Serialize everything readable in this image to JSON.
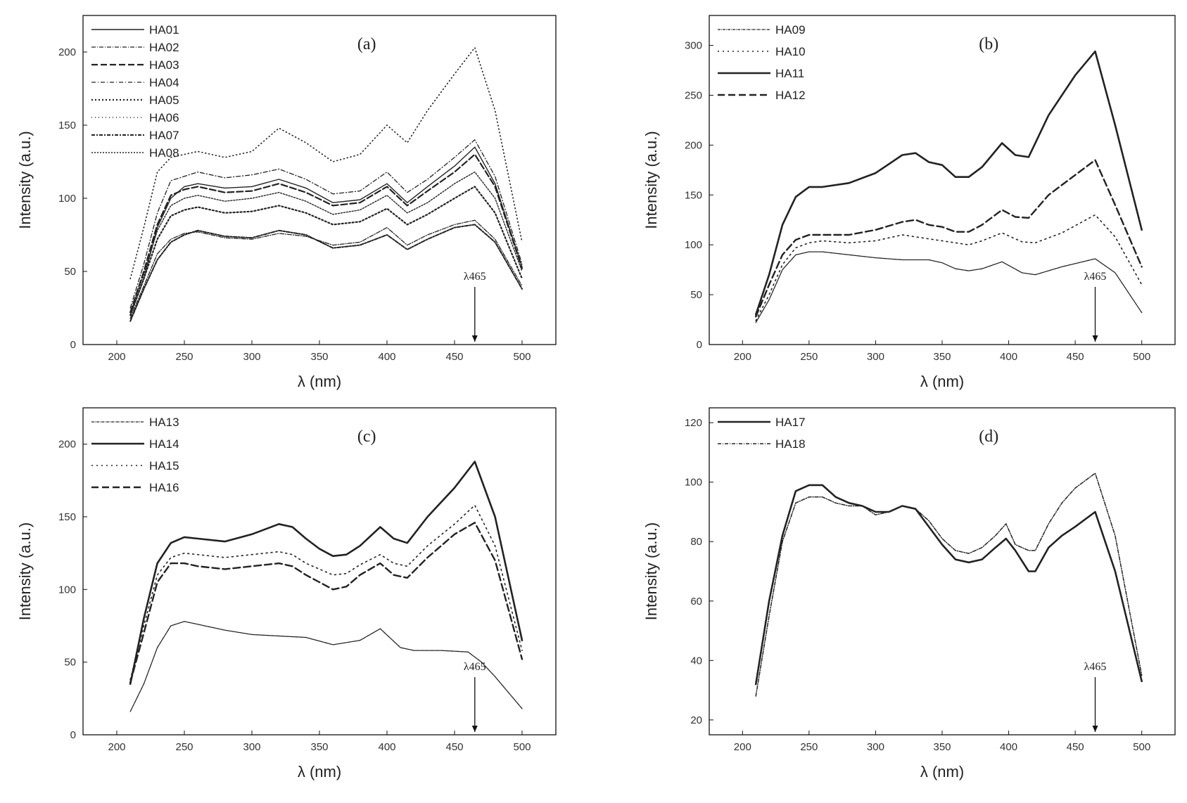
{
  "chart_data": [
    {
      "panel": "(a)",
      "type": "line",
      "xlabel": "λ (nm)",
      "ylabel": "Intensity (a.u.)",
      "xlim": [
        175,
        525
      ],
      "ylim": [
        0,
        225
      ],
      "xticks": [
        200,
        250,
        300,
        350,
        400,
        450,
        500
      ],
      "yticks": [
        0,
        50,
        100,
        150,
        200
      ],
      "annotation": {
        "text": "λ465",
        "x": 465
      },
      "legend_position": "top-left",
      "series": [
        {
          "name": "HA01",
          "dash": "",
          "width": 1.4,
          "x": [
            210,
            220,
            230,
            240,
            250,
            260,
            280,
            300,
            320,
            340,
            360,
            380,
            400,
            415,
            430,
            450,
            465,
            480,
            500
          ],
          "y": [
            20,
            45,
            80,
            100,
            108,
            110,
            107,
            108,
            113,
            107,
            97,
            99,
            110,
            97,
            108,
            122,
            135,
            110,
            53
          ]
        },
        {
          "name": "HA02",
          "dash": "6,2,1,2",
          "width": 1.3,
          "x": [
            210,
            220,
            230,
            240,
            250,
            260,
            280,
            300,
            320,
            340,
            360,
            380,
            400,
            415,
            430,
            450,
            465,
            480,
            500
          ],
          "y": [
            18,
            40,
            62,
            72,
            76,
            77,
            73,
            72,
            76,
            74,
            68,
            70,
            80,
            68,
            75,
            82,
            85,
            72,
            40
          ]
        },
        {
          "name": "HA03",
          "dash": "9,4",
          "width": 2.2,
          "x": [
            210,
            220,
            230,
            240,
            250,
            260,
            280,
            300,
            320,
            340,
            360,
            380,
            400,
            415,
            430,
            450,
            465,
            480,
            500
          ],
          "y": [
            22,
            50,
            82,
            102,
            106,
            108,
            104,
            105,
            110,
            104,
            95,
            97,
            108,
            95,
            105,
            118,
            130,
            108,
            52
          ]
        },
        {
          "name": "HA04",
          "dash": "6,3,1,3",
          "width": 1.3,
          "x": [
            210,
            220,
            230,
            240,
            250,
            260,
            280,
            300,
            320,
            340,
            360,
            380,
            400,
            415,
            430,
            450,
            465,
            480,
            500
          ],
          "y": [
            25,
            55,
            90,
            112,
            115,
            118,
            114,
            116,
            120,
            113,
            103,
            105,
            118,
            104,
            113,
            128,
            140,
            115,
            55
          ]
        },
        {
          "name": "HA05",
          "dash": "2,3",
          "width": 2.2,
          "x": [
            210,
            220,
            230,
            240,
            250,
            260,
            280,
            300,
            320,
            340,
            360,
            380,
            400,
            415,
            430,
            450,
            465,
            480,
            500
          ],
          "y": [
            20,
            45,
            72,
            88,
            92,
            94,
            90,
            91,
            95,
            90,
            82,
            84,
            93,
            82,
            89,
            100,
            108,
            90,
            45
          ]
        },
        {
          "name": "HA06",
          "dash": "1,4",
          "width": 1.6,
          "x": [
            210,
            220,
            230,
            240,
            250,
            260,
            280,
            300,
            320,
            340,
            360,
            380,
            400,
            415,
            430,
            450,
            465,
            480,
            500
          ],
          "y": [
            45,
            80,
            118,
            128,
            130,
            132,
            128,
            132,
            148,
            138,
            125,
            130,
            150,
            138,
            160,
            185,
            203,
            160,
            70
          ]
        },
        {
          "name": "HA07",
          "dash": "5,2,2,2",
          "width": 2.0,
          "x": [
            210,
            220,
            230,
            240,
            250,
            260,
            280,
            300,
            320,
            340,
            360,
            380,
            400,
            415,
            430,
            450,
            465,
            480,
            500
          ],
          "y": [
            16,
            38,
            58,
            70,
            75,
            78,
            74,
            73,
            78,
            75,
            66,
            68,
            75,
            65,
            72,
            80,
            82,
            70,
            38
          ]
        },
        {
          "name": "HA08",
          "dash": "2,2",
          "width": 1.4,
          "x": [
            210,
            220,
            230,
            240,
            250,
            260,
            280,
            300,
            320,
            340,
            360,
            380,
            400,
            415,
            430,
            450,
            465,
            480,
            500
          ],
          "y": [
            22,
            48,
            78,
            95,
            100,
            102,
            98,
            100,
            104,
            98,
            89,
            92,
            102,
            90,
            97,
            110,
            118,
            100,
            50
          ]
        }
      ]
    },
    {
      "panel": "(b)",
      "type": "line",
      "xlabel": "λ (nm)",
      "ylabel": "Intensity (a.u.)",
      "xlim": [
        175,
        525
      ],
      "ylim": [
        0,
        330
      ],
      "xticks": [
        200,
        250,
        300,
        350,
        400,
        450,
        500
      ],
      "yticks": [
        0,
        50,
        100,
        150,
        200,
        250,
        300
      ],
      "annotation": {
        "text": "λ465",
        "x": 465
      },
      "legend_position": "top-left",
      "series": [
        {
          "name": "HA09",
          "dash": "4,1,1,1",
          "width": 1.3,
          "x": [
            210,
            220,
            230,
            240,
            250,
            260,
            280,
            300,
            320,
            340,
            350,
            360,
            370,
            380,
            395,
            410,
            420,
            440,
            465,
            480,
            500
          ],
          "y": [
            22,
            45,
            75,
            90,
            93,
            93,
            90,
            87,
            85,
            85,
            82,
            76,
            74,
            76,
            83,
            72,
            70,
            78,
            86,
            72,
            32
          ]
        },
        {
          "name": "HA10",
          "dash": "2,5",
          "width": 1.6,
          "x": [
            210,
            220,
            230,
            240,
            250,
            260,
            280,
            300,
            320,
            340,
            350,
            360,
            370,
            380,
            395,
            410,
            420,
            440,
            465,
            480,
            500
          ],
          "y": [
            24,
            50,
            80,
            97,
            102,
            104,
            102,
            104,
            110,
            106,
            104,
            102,
            100,
            104,
            112,
            103,
            102,
            112,
            130,
            108,
            60
          ]
        },
        {
          "name": "HA11",
          "dash": "",
          "width": 2.6,
          "x": [
            210,
            220,
            230,
            240,
            250,
            260,
            280,
            300,
            320,
            330,
            340,
            350,
            360,
            370,
            380,
            395,
            405,
            415,
            430,
            450,
            465,
            480,
            500
          ],
          "y": [
            30,
            70,
            120,
            148,
            158,
            158,
            162,
            172,
            190,
            192,
            183,
            180,
            168,
            168,
            178,
            202,
            190,
            188,
            230,
            270,
            294,
            220,
            115
          ]
        },
        {
          "name": "HA12",
          "dash": "10,5",
          "width": 2.4,
          "x": [
            210,
            220,
            230,
            240,
            250,
            260,
            280,
            300,
            320,
            330,
            340,
            350,
            360,
            370,
            380,
            395,
            405,
            415,
            430,
            450,
            465,
            480,
            500
          ],
          "y": [
            28,
            60,
            90,
            105,
            110,
            110,
            110,
            115,
            123,
            125,
            120,
            118,
            113,
            113,
            120,
            135,
            128,
            127,
            150,
            170,
            185,
            140,
            78
          ]
        }
      ]
    },
    {
      "panel": "(c)",
      "type": "line",
      "xlabel": "λ (nm)",
      "ylabel": "Intensity (a.u.)",
      "xlim": [
        175,
        525
      ],
      "ylim": [
        0,
        225
      ],
      "xticks": [
        200,
        250,
        300,
        350,
        400,
        450,
        500
      ],
      "yticks": [
        0,
        50,
        100,
        150,
        200
      ],
      "annotation": {
        "text": "λ465",
        "x": 465
      },
      "legend_position": "top-left",
      "series": [
        {
          "name": "HA13",
          "dash": "4,1,1,1",
          "width": 1.3,
          "x": [
            210,
            220,
            230,
            240,
            250,
            260,
            280,
            300,
            320,
            340,
            360,
            380,
            395,
            410,
            420,
            440,
            460,
            470,
            480,
            500
          ],
          "y": [
            16,
            35,
            60,
            75,
            78,
            76,
            72,
            69,
            68,
            67,
            62,
            65,
            73,
            60,
            58,
            58,
            57,
            50,
            40,
            18
          ]
        },
        {
          "name": "HA14",
          "dash": "",
          "width": 2.6,
          "x": [
            210,
            220,
            230,
            240,
            250,
            260,
            280,
            300,
            320,
            330,
            340,
            350,
            360,
            370,
            380,
            395,
            405,
            415,
            430,
            450,
            465,
            480,
            500
          ],
          "y": [
            35,
            80,
            118,
            132,
            136,
            135,
            133,
            138,
            145,
            143,
            135,
            128,
            123,
            124,
            130,
            143,
            135,
            132,
            150,
            170,
            188,
            150,
            65
          ]
        },
        {
          "name": "HA15",
          "dash": "2,5",
          "width": 1.6,
          "x": [
            210,
            220,
            230,
            240,
            250,
            260,
            280,
            300,
            320,
            330,
            340,
            350,
            360,
            370,
            380,
            395,
            405,
            415,
            430,
            450,
            465,
            480,
            500
          ],
          "y": [
            38,
            75,
            110,
            122,
            125,
            124,
            122,
            124,
            126,
            124,
            118,
            114,
            110,
            111,
            117,
            124,
            118,
            116,
            130,
            145,
            158,
            130,
            58
          ]
        },
        {
          "name": "HA16",
          "dash": "10,5",
          "width": 2.4,
          "x": [
            210,
            220,
            230,
            240,
            250,
            260,
            280,
            300,
            320,
            330,
            340,
            350,
            360,
            370,
            380,
            395,
            405,
            415,
            430,
            450,
            465,
            480,
            500
          ],
          "y": [
            36,
            70,
            105,
            118,
            118,
            116,
            114,
            116,
            118,
            116,
            110,
            105,
            100,
            102,
            110,
            118,
            110,
            108,
            122,
            138,
            146,
            120,
            52
          ]
        }
      ]
    },
    {
      "panel": "(d)",
      "type": "line",
      "xlabel": "λ (nm)",
      "ylabel": "Intensity (a.u.)",
      "xlim": [
        175,
        525
      ],
      "ylim": [
        15,
        125
      ],
      "xticks": [
        200,
        250,
        300,
        350,
        400,
        450,
        500
      ],
      "yticks": [
        20,
        40,
        60,
        80,
        100,
        120
      ],
      "annotation": {
        "text": "λ465",
        "x": 465
      },
      "legend_position": "top-left",
      "series": [
        {
          "name": "HA17",
          "dash": "",
          "width": 2.6,
          "x": [
            210,
            220,
            230,
            240,
            250,
            260,
            270,
            280,
            290,
            300,
            310,
            320,
            330,
            340,
            350,
            360,
            370,
            380,
            390,
            398,
            405,
            415,
            420,
            430,
            440,
            450,
            465,
            480,
            500
          ],
          "y": [
            32,
            60,
            82,
            97,
            99,
            99,
            95,
            93,
            92,
            90,
            90,
            92,
            91,
            85,
            79,
            74,
            73,
            74,
            78,
            81,
            77,
            70,
            70,
            78,
            82,
            85,
            90,
            70,
            33
          ]
        },
        {
          "name": "HA18",
          "dash": "5,2,1,2",
          "width": 1.5,
          "x": [
            210,
            220,
            230,
            240,
            250,
            260,
            270,
            280,
            290,
            300,
            310,
            320,
            330,
            340,
            350,
            360,
            370,
            380,
            390,
            398,
            405,
            415,
            420,
            430,
            440,
            450,
            465,
            480,
            500
          ],
          "y": [
            28,
            55,
            80,
            93,
            95,
            95,
            93,
            92,
            92,
            89,
            90,
            92,
            91,
            87,
            81,
            77,
            76,
            78,
            82,
            86,
            79,
            77,
            77,
            86,
            93,
            98,
            103,
            82,
            35
          ]
        }
      ]
    }
  ]
}
